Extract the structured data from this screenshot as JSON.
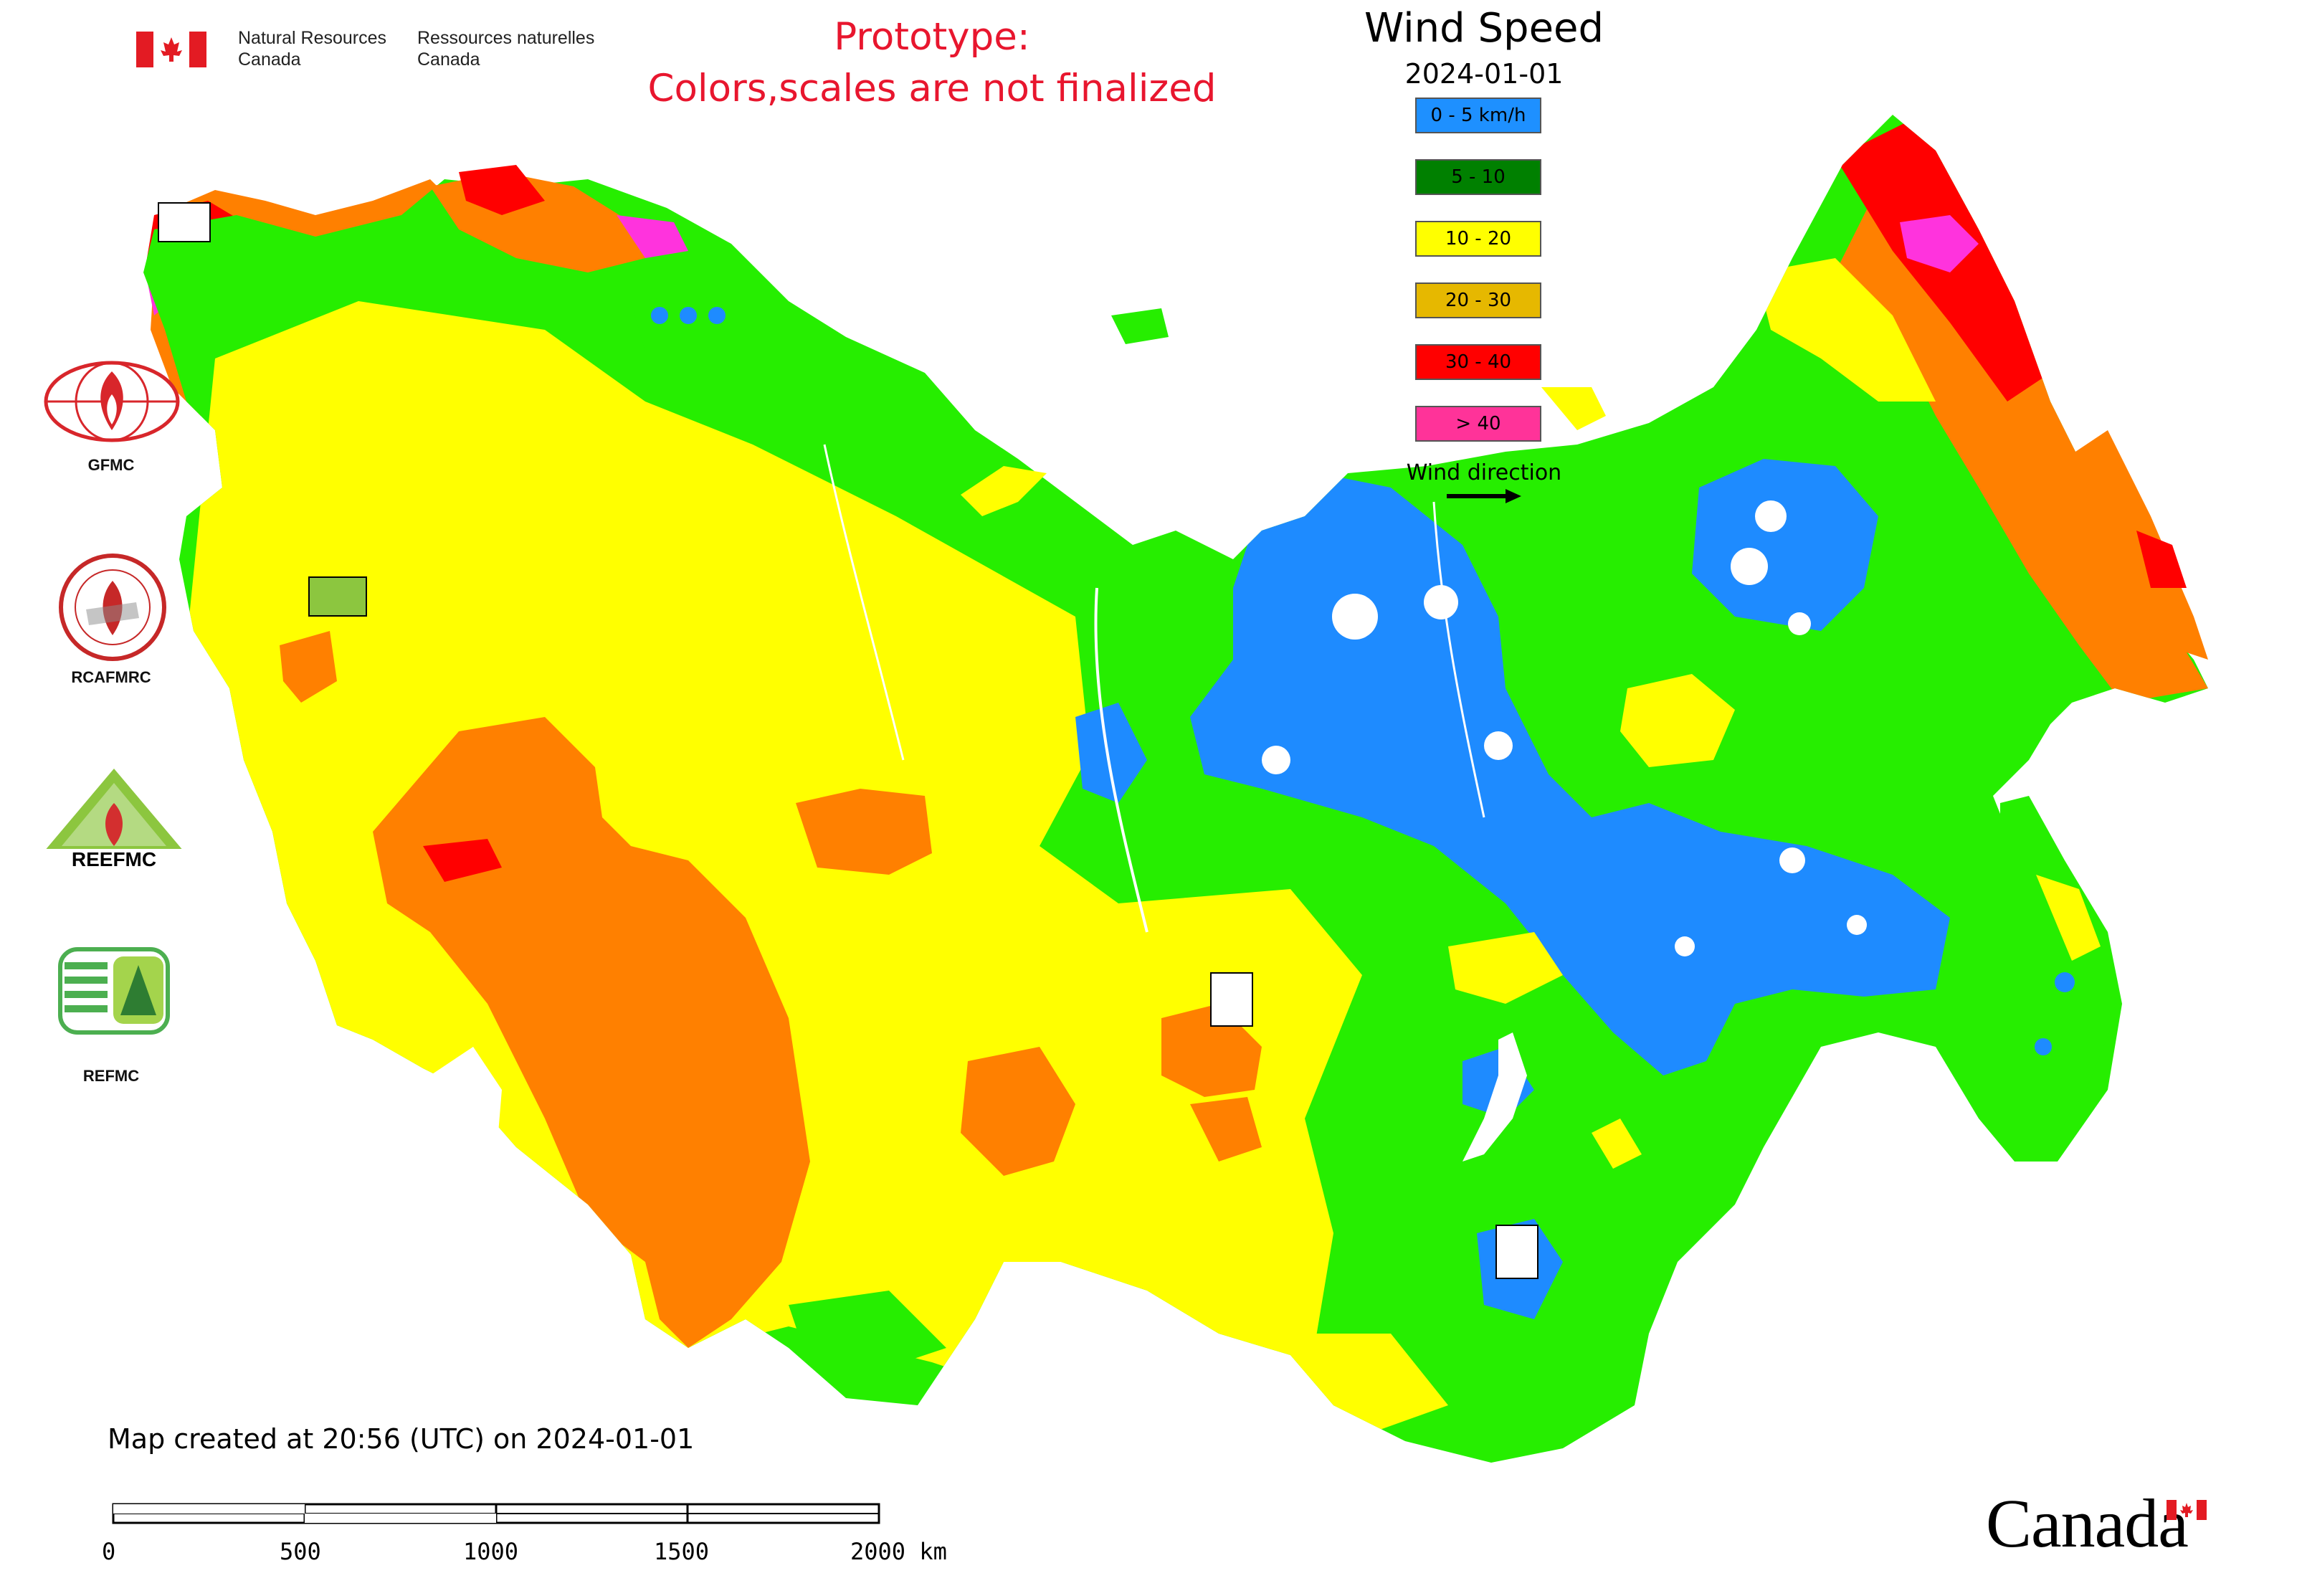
{
  "header": {
    "agency_en": [
      "Natural Resources",
      "Canada"
    ],
    "agency_fr": [
      "Ressources naturelles",
      "Canada"
    ],
    "prototype_lines": [
      "Prototype:",
      "Colors,scales are not finalized"
    ]
  },
  "legend": {
    "title": "Wind Speed",
    "date": "2024-01-01",
    "classes": [
      {
        "label": "0 - 5 km/h",
        "color": "#1e90ff"
      },
      {
        "label": "5 - 10",
        "color": "#008000"
      },
      {
        "label": "10 - 20",
        "color": "#ffff00"
      },
      {
        "label": "20 - 30",
        "color": "#e6b800"
      },
      {
        "label": "30 - 40",
        "color": "#ff0000"
      },
      {
        "label": "> 40",
        "color": "#ff3399"
      }
    ],
    "wind_direction_label": "Wind direction"
  },
  "map_colors": {
    "calm": "#1e8bff",
    "light": "#26ee00",
    "moderate": "#ffff00",
    "fresh": "#ff8000",
    "strong": "#ff0000",
    "gale": "#ff33dd"
  },
  "logos": [
    {
      "label": "GFMC",
      "icon": "gfmc-logo-icon"
    },
    {
      "label": "RCAFMRC",
      "icon": "rcafmrc-logo-icon"
    },
    {
      "label": "",
      "icon": "reefmc-logo-icon",
      "text": "REEFMC"
    },
    {
      "label": "REFMC",
      "icon": "refmc-logo-icon"
    }
  ],
  "footer": {
    "created": "Map created at 20:56 (UTC) on 2024-01-01",
    "scale_ticks": [
      "0",
      "500",
      "1000",
      "1500",
      "2000 km"
    ],
    "wordmark": "Canada"
  }
}
